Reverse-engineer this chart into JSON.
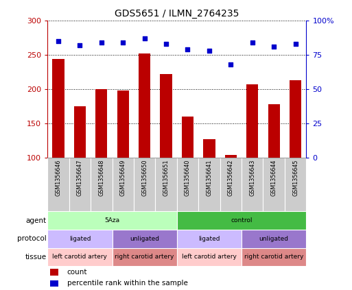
{
  "title": "GDS5651 / ILMN_2764235",
  "samples": [
    "GSM1356646",
    "GSM1356647",
    "GSM1356648",
    "GSM1356649",
    "GSM1356650",
    "GSM1356651",
    "GSM1356640",
    "GSM1356641",
    "GSM1356642",
    "GSM1356643",
    "GSM1356644",
    "GSM1356645"
  ],
  "counts": [
    244,
    175,
    200,
    198,
    252,
    222,
    160,
    127,
    104,
    207,
    178,
    213
  ],
  "percentiles": [
    85,
    82,
    84,
    84,
    87,
    83,
    79,
    78,
    68,
    84,
    81,
    83
  ],
  "bar_color": "#bb0000",
  "dot_color": "#0000cc",
  "ylim_left": [
    100,
    300
  ],
  "ylim_right": [
    0,
    100
  ],
  "yticks_left": [
    100,
    150,
    200,
    250,
    300
  ],
  "yticks_right": [
    0,
    25,
    50,
    75,
    100
  ],
  "ytick_labels_right": [
    "0",
    "25",
    "50",
    "75",
    "100%"
  ],
  "agent_groups": [
    {
      "label": "5Aza",
      "start": 0,
      "end": 6,
      "color": "#bbffbb"
    },
    {
      "label": "control",
      "start": 6,
      "end": 12,
      "color": "#44bb44"
    }
  ],
  "protocol_groups": [
    {
      "label": "ligated",
      "start": 0,
      "end": 3,
      "color": "#ccbbff"
    },
    {
      "label": "unligated",
      "start": 3,
      "end": 6,
      "color": "#9977cc"
    },
    {
      "label": "ligated",
      "start": 6,
      "end": 9,
      "color": "#ccbbff"
    },
    {
      "label": "unligated",
      "start": 9,
      "end": 12,
      "color": "#9977cc"
    }
  ],
  "tissue_groups": [
    {
      "label": "left carotid artery",
      "start": 0,
      "end": 3,
      "color": "#ffcccc"
    },
    {
      "label": "right carotid artery",
      "start": 3,
      "end": 6,
      "color": "#dd8888"
    },
    {
      "label": "left carotid artery",
      "start": 6,
      "end": 9,
      "color": "#ffcccc"
    },
    {
      "label": "right carotid artery",
      "start": 9,
      "end": 12,
      "color": "#dd8888"
    }
  ],
  "row_labels": [
    "agent",
    "protocol",
    "tissue"
  ],
  "legend_items": [
    {
      "color": "#bb0000",
      "label": "count"
    },
    {
      "color": "#0000cc",
      "label": "percentile rank within the sample"
    }
  ],
  "background_color": "#ffffff",
  "sample_bg_color": "#cccccc",
  "grid_color": "#000000"
}
